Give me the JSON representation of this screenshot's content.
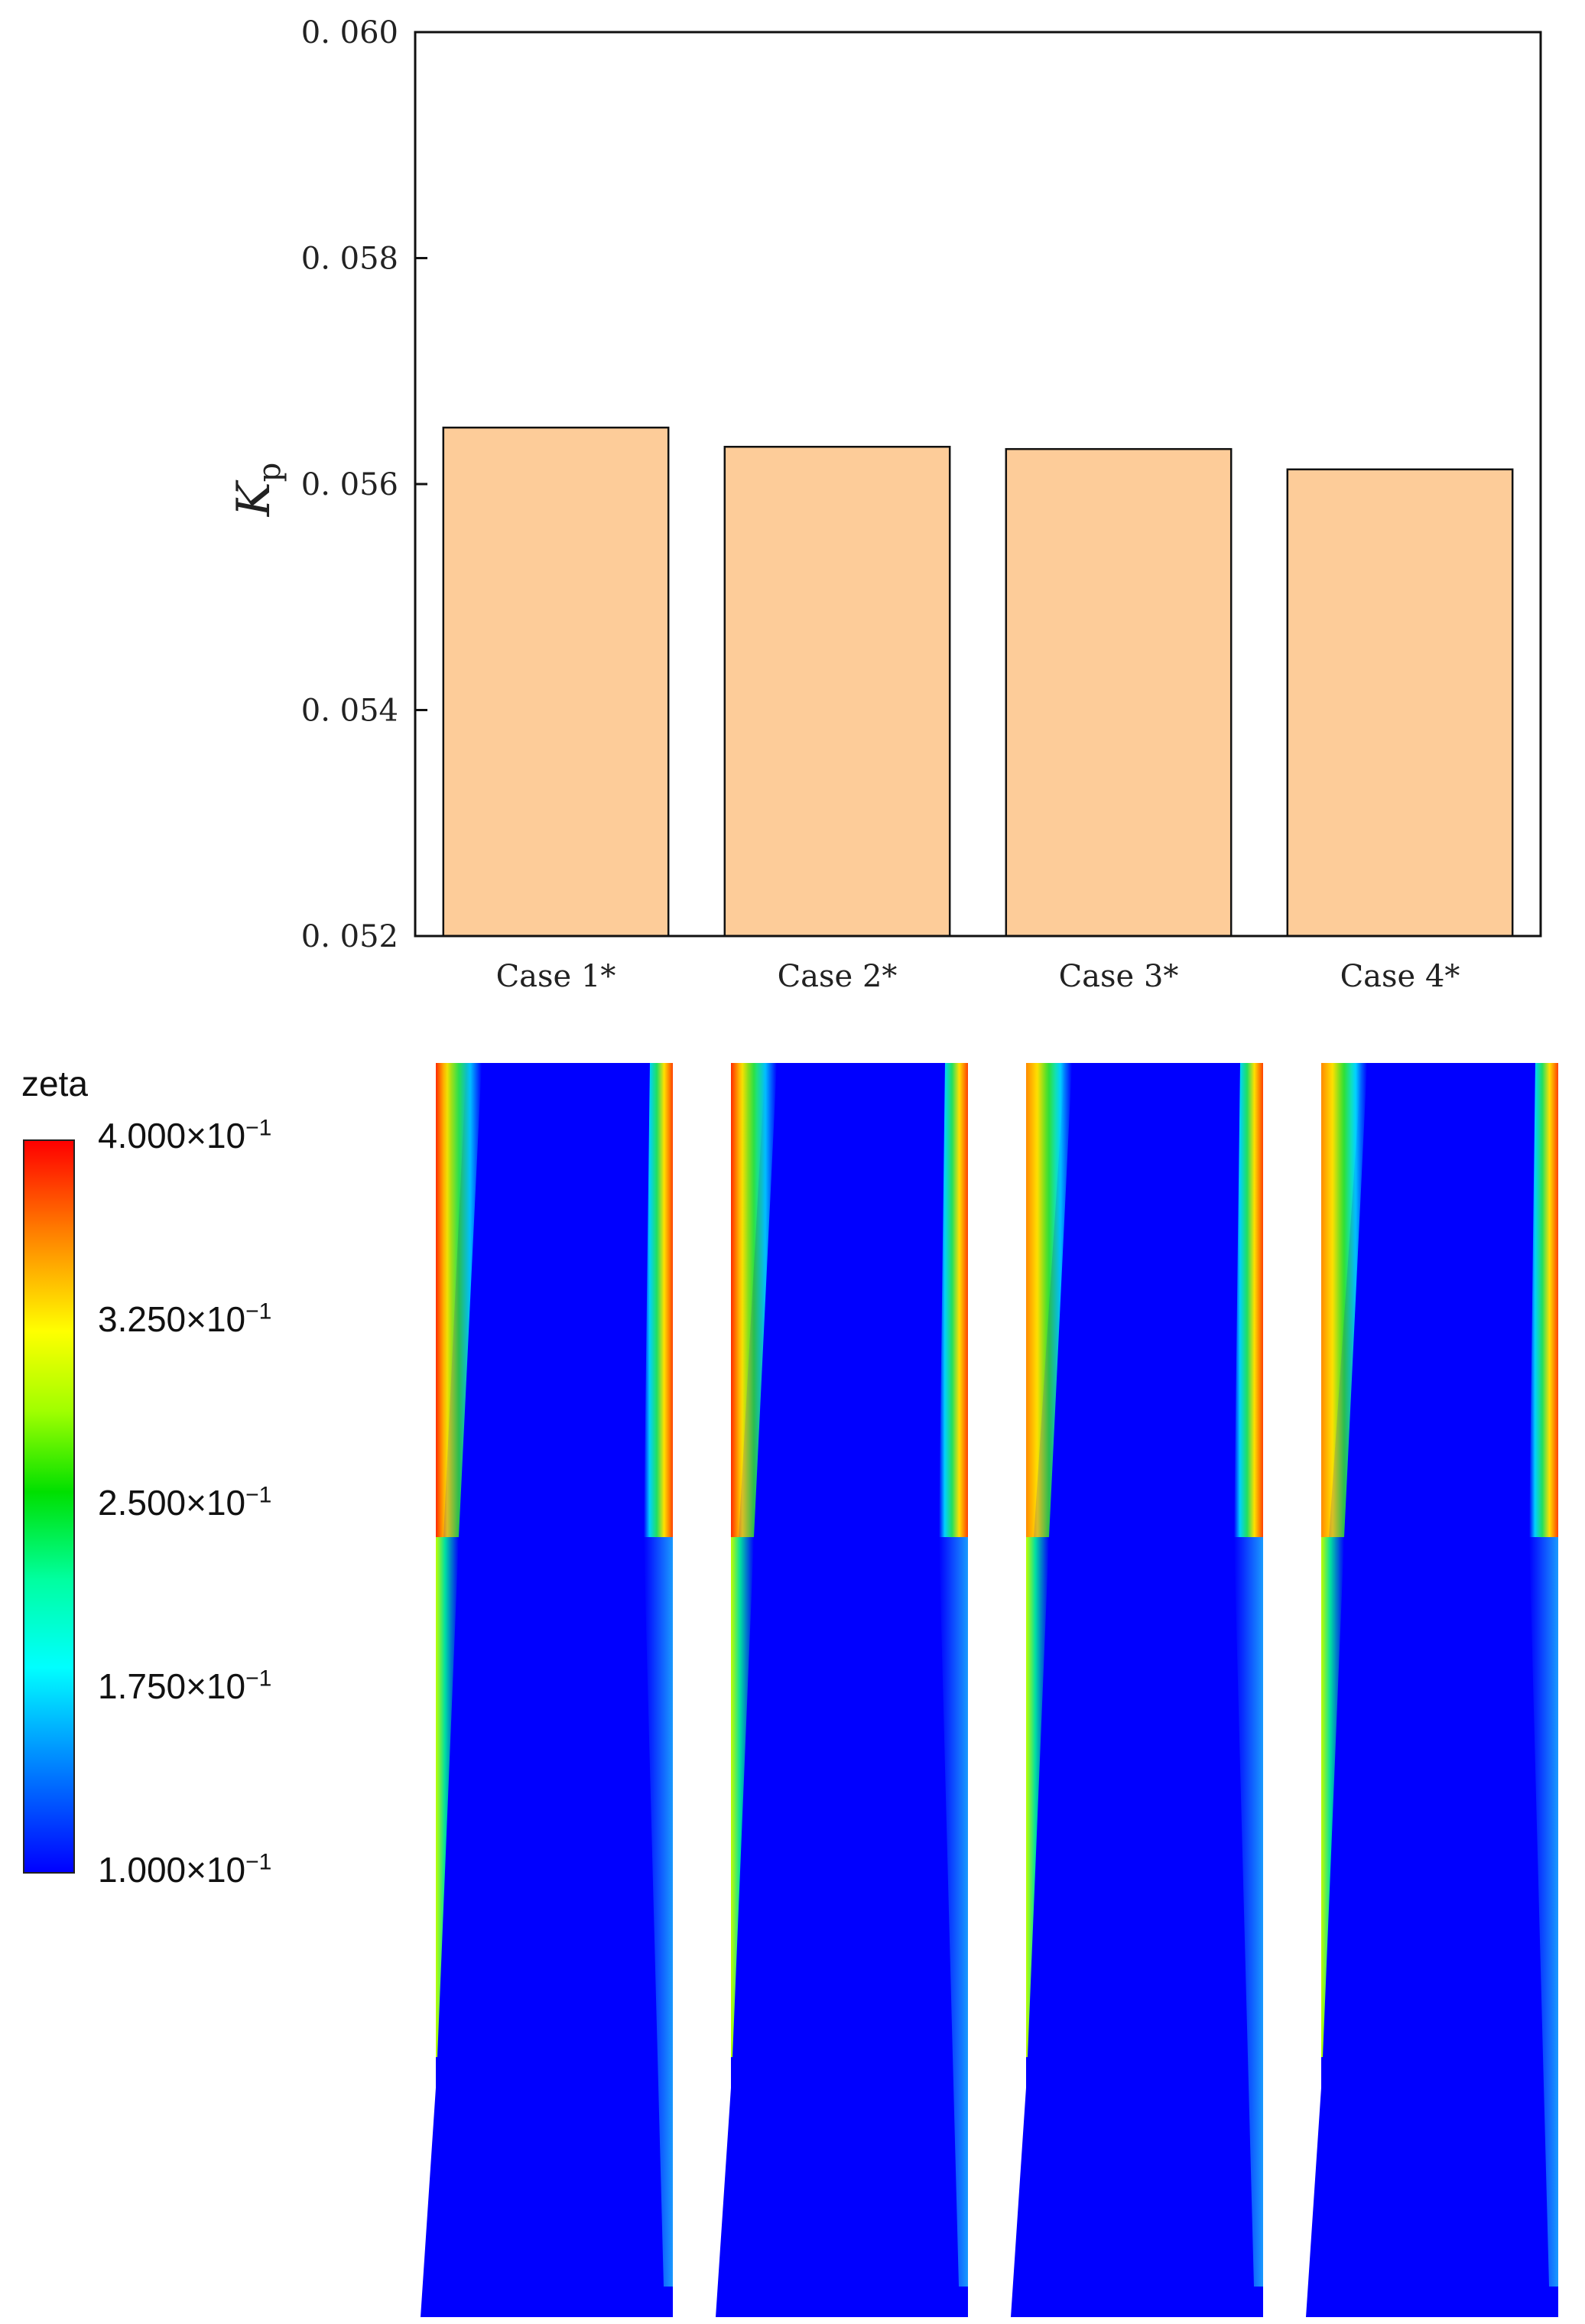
{
  "chart_data": {
    "type": "bar",
    "categories": [
      "Case 1*",
      "Case 2*",
      "Case 3*",
      "Case 4*"
    ],
    "values": [
      0.0565,
      0.05633,
      0.05631,
      0.05613
    ],
    "ylabel": "K",
    "ylabel_subscript": "p",
    "ylim": [
      0.052,
      0.06
    ],
    "yticks": [
      "0. 052",
      "0. 054",
      "0. 056",
      "0. 058",
      "0. 060"
    ],
    "ytick_values": [
      0.052,
      0.054,
      0.056,
      0.058,
      0.06
    ],
    "bar_color": "#fdcc99",
    "grid": false,
    "legend": "none"
  },
  "contour_legend": {
    "title": "zeta",
    "labels": [
      {
        "mantissa": "4.000",
        "exp": "−1"
      },
      {
        "mantissa": "3.250",
        "exp": "−1"
      },
      {
        "mantissa": "2.500",
        "exp": "−1"
      },
      {
        "mantissa": "1.750",
        "exp": "−1"
      },
      {
        "mantissa": "1.000",
        "exp": "−1"
      }
    ],
    "colormap": [
      "#0000ff",
      "#00ffff",
      "#00ff00",
      "#ffff00",
      "#ff0000"
    ]
  }
}
